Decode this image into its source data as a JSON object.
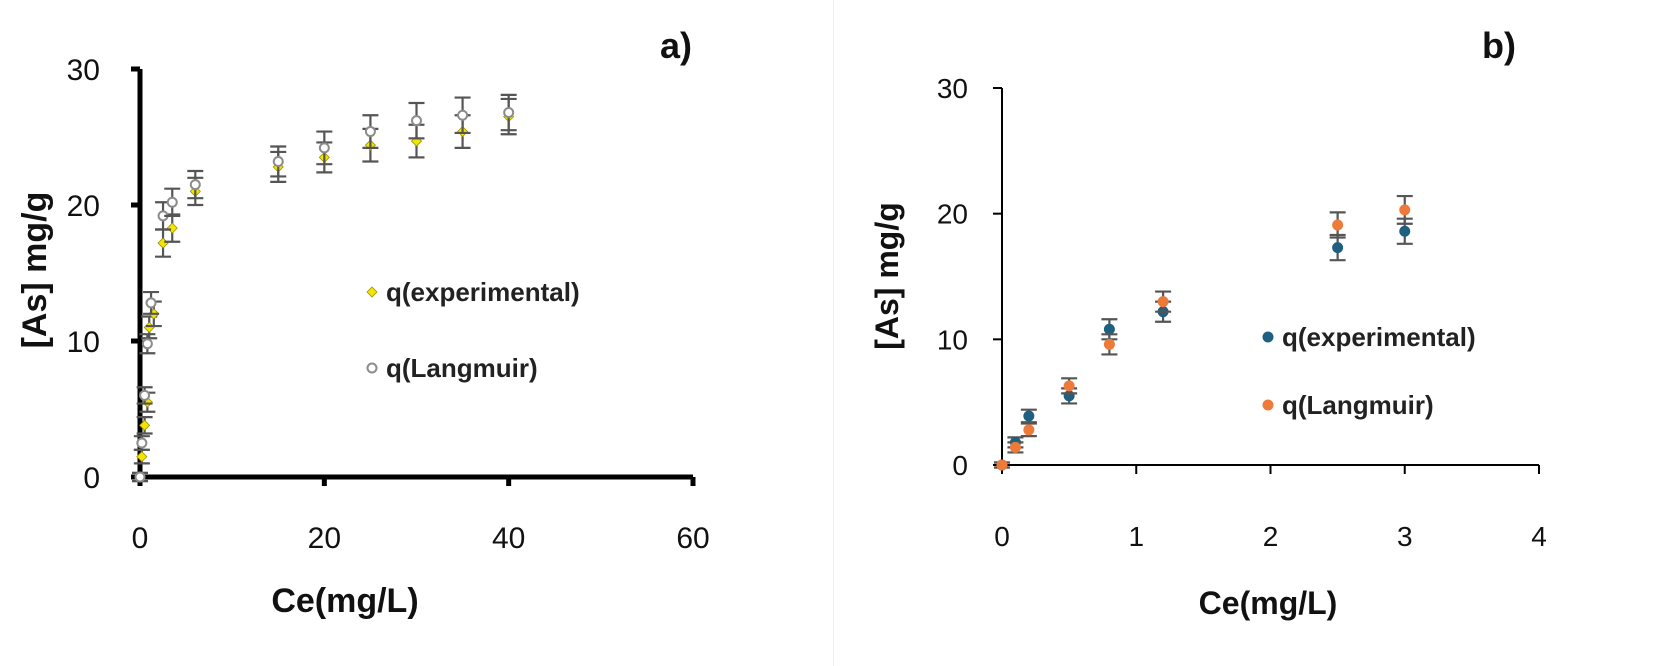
{
  "chart_data": [
    {
      "type": "scatter",
      "panel_label": "a)",
      "xlabel": "Ce(mg/L)",
      "ylabel": "[As] mg/g",
      "xlim": [
        0,
        60
      ],
      "ylim": [
        0,
        30
      ],
      "xticks": [
        0,
        20,
        40,
        60
      ],
      "yticks": [
        0,
        10,
        20,
        30
      ],
      "grid": false,
      "legend_position": "center-right",
      "series": [
        {
          "name": "q(experimental)",
          "color": "#f2e600",
          "marker": "diamond",
          "points": [
            {
              "x": 0,
              "y": 0,
              "err": 0.3
            },
            {
              "x": 0.2,
              "y": 1.5,
              "err": 0.5
            },
            {
              "x": 0.5,
              "y": 3.8,
              "err": 0.6
            },
            {
              "x": 0.8,
              "y": 5.5,
              "err": 0.7
            },
            {
              "x": 1,
              "y": 11.0,
              "err": 0.8
            },
            {
              "x": 1.5,
              "y": 12.0,
              "err": 0.9
            },
            {
              "x": 2.5,
              "y": 17.2,
              "err": 1.0
            },
            {
              "x": 3.5,
              "y": 18.3,
              "err": 1.0
            },
            {
              "x": 6,
              "y": 21.0,
              "err": 1.0
            },
            {
              "x": 15,
              "y": 22.8,
              "err": 1.1
            },
            {
              "x": 20,
              "y": 23.5,
              "err": 1.1
            },
            {
              "x": 25,
              "y": 24.4,
              "err": 1.2
            },
            {
              "x": 30,
              "y": 24.7,
              "err": 1.2
            },
            {
              "x": 35,
              "y": 25.4,
              "err": 1.2
            },
            {
              "x": 40,
              "y": 26.5,
              "err": 1.3
            }
          ]
        },
        {
          "name": "q(Langmuir)",
          "color": "#8c8c8c",
          "marker": "circle",
          "points": [
            {
              "x": 0,
              "y": 0,
              "err": 0.3
            },
            {
              "x": 0.2,
              "y": 2.5,
              "err": 0.5
            },
            {
              "x": 0.5,
              "y": 6.0,
              "err": 0.6
            },
            {
              "x": 0.8,
              "y": 9.8,
              "err": 0.7
            },
            {
              "x": 1.2,
              "y": 12.8,
              "err": 0.8
            },
            {
              "x": 2.5,
              "y": 19.2,
              "err": 1.0
            },
            {
              "x": 3.5,
              "y": 20.2,
              "err": 1.0
            },
            {
              "x": 6,
              "y": 21.5,
              "err": 1.0
            },
            {
              "x": 15,
              "y": 23.2,
              "err": 1.1
            },
            {
              "x": 20,
              "y": 24.2,
              "err": 1.2
            },
            {
              "x": 25,
              "y": 25.4,
              "err": 1.2
            },
            {
              "x": 30,
              "y": 26.2,
              "err": 1.3
            },
            {
              "x": 35,
              "y": 26.6,
              "err": 1.3
            },
            {
              "x": 40,
              "y": 26.8,
              "err": 1.3
            }
          ]
        }
      ]
    },
    {
      "type": "scatter",
      "panel_label": "b)",
      "xlabel": "Ce(mg/L)",
      "ylabel": "[As] mg/g",
      "xlim": [
        0,
        4
      ],
      "ylim": [
        0,
        30
      ],
      "xticks": [
        0,
        1,
        2,
        3,
        4
      ],
      "yticks": [
        0,
        10,
        20,
        30
      ],
      "grid": false,
      "legend_position": "center-right",
      "series": [
        {
          "name": "q(experimental)",
          "color": "#1f5f7f",
          "marker": "circle",
          "points": [
            {
              "x": 0,
              "y": 0,
              "err": 0.2
            },
            {
              "x": 0.1,
              "y": 1.8,
              "err": 0.4
            },
            {
              "x": 0.2,
              "y": 3.9,
              "err": 0.5
            },
            {
              "x": 0.5,
              "y": 5.5,
              "err": 0.6
            },
            {
              "x": 0.8,
              "y": 10.8,
              "err": 0.8
            },
            {
              "x": 1.2,
              "y": 12.2,
              "err": 0.8
            },
            {
              "x": 2.5,
              "y": 17.3,
              "err": 1.0
            },
            {
              "x": 3.0,
              "y": 18.6,
              "err": 1.0
            }
          ]
        },
        {
          "name": "q(Langmuir)",
          "color": "#ee7a3a",
          "marker": "circle",
          "points": [
            {
              "x": 0,
              "y": 0,
              "err": 0.2
            },
            {
              "x": 0.1,
              "y": 1.4,
              "err": 0.4
            },
            {
              "x": 0.2,
              "y": 2.8,
              "err": 0.5
            },
            {
              "x": 0.5,
              "y": 6.3,
              "err": 0.6
            },
            {
              "x": 0.8,
              "y": 9.6,
              "err": 0.8
            },
            {
              "x": 1.2,
              "y": 13.0,
              "err": 0.8
            },
            {
              "x": 2.5,
              "y": 19.1,
              "err": 1.0
            },
            {
              "x": 3.0,
              "y": 20.3,
              "err": 1.1
            }
          ]
        }
      ]
    }
  ]
}
